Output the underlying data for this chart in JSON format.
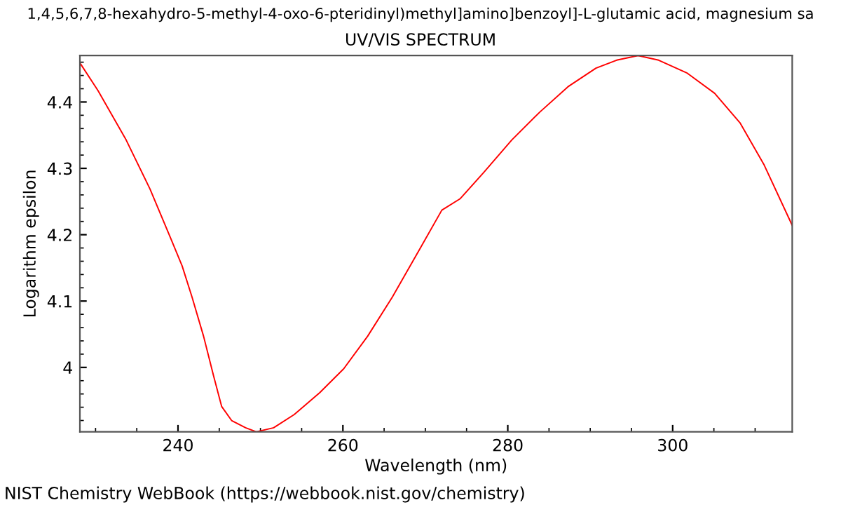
{
  "chart_data": {
    "type": "line",
    "title": "1,4,5,6,7,8-hexahydro-5-methyl-4-oxo-6-pteridinyl)methyl]amino]benzoyl]-L-glutamic acid, magnesium sa",
    "subtitle": "UV/VIS SPECTRUM",
    "xlabel": "Wavelength (nm)",
    "ylabel": "Logarithm epsilon",
    "annotations": [
      "NIST Chemistry WebBook (https://webbook.nist.gov/chemistry)"
    ],
    "series": [
      {
        "color": "#ff0000",
        "x": [
          228.1,
          230.3,
          233.7,
          236.6,
          239.1,
          240.5,
          241.7,
          243.1,
          244.3,
          245.3,
          246.5,
          248.2,
          249.5,
          251.6,
          254.1,
          257.2,
          260.1,
          263.0,
          266.0,
          269.4,
          272.0,
          274.2,
          277.1,
          280.5,
          283.9,
          287.3,
          290.7,
          293.2,
          295.8,
          298.3,
          301.7,
          305.1,
          308.2,
          311.1,
          314.5
        ],
        "values": [
          4.459,
          4.417,
          4.343,
          4.269,
          4.195,
          4.153,
          4.106,
          4.047,
          3.988,
          3.941,
          3.92,
          3.909,
          3.903,
          3.909,
          3.929,
          3.962,
          3.998,
          4.047,
          4.106,
          4.18,
          4.237,
          4.254,
          4.294,
          4.343,
          4.385,
          4.423,
          4.451,
          4.463,
          4.47,
          4.463,
          4.444,
          4.413,
          4.368,
          4.305,
          4.214
        ]
      }
    ],
    "xlim": [
      228.1,
      314.5
    ],
    "ylim": [
      3.903,
      4.47
    ],
    "xticks": [
      240,
      260,
      280,
      300
    ],
    "yticks": [
      4,
      4.1,
      4.2,
      4.3,
      4.4
    ],
    "grid": false,
    "marker": "none",
    "line_style": "solid"
  }
}
